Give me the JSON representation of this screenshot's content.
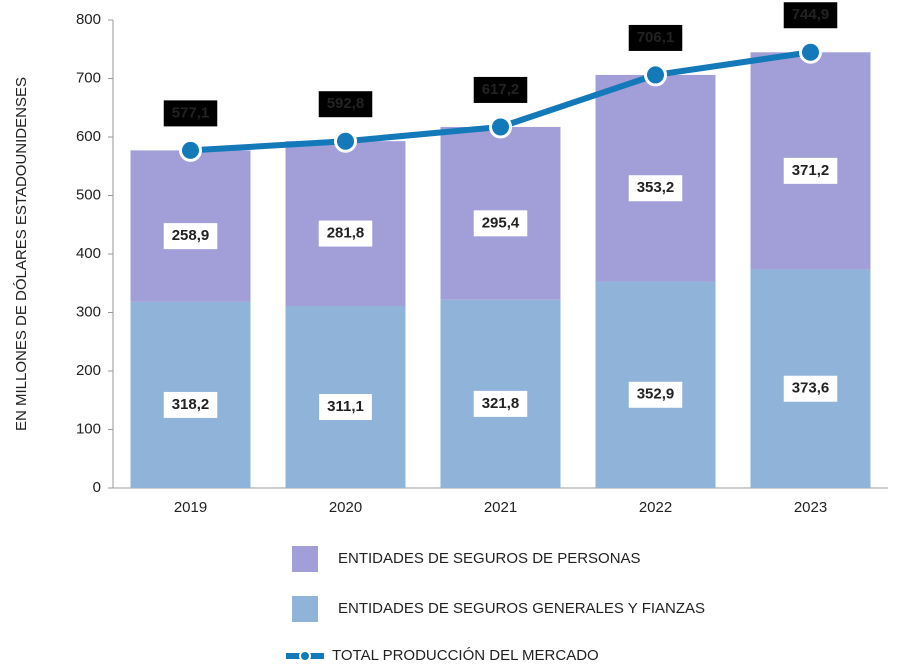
{
  "chart_data": {
    "type": "bar",
    "stacked": true,
    "y_label": "EN MILLONES DE DÓLARES ESTADOUNIDENSES",
    "categories": [
      "2019",
      "2020",
      "2021",
      "2022",
      "2023"
    ],
    "series": [
      {
        "name": "ENTIDADES DE SEGUROS GENERALES Y FIANZAS",
        "type": "bar",
        "color": "#8fb3d9",
        "values": [
          318.2,
          311.1,
          321.8,
          352.9,
          373.6
        ],
        "value_labels": [
          "318,2",
          "311,1",
          "321,8",
          "352,9",
          "373,6"
        ]
      },
      {
        "name": "ENTIDADES DE SEGUROS DE PERSONAS",
        "type": "bar",
        "color": "#a29fd8",
        "values": [
          258.9,
          281.8,
          295.4,
          353.2,
          371.2
        ],
        "value_labels": [
          "258,9",
          "281,8",
          "295,4",
          "353,2",
          "371,2"
        ]
      },
      {
        "name": "TOTAL PRODUCCIÓN DEL MERCADO",
        "type": "line",
        "color": "#1479b8",
        "values": [
          577.1,
          592.8,
          617.2,
          706.1,
          744.9
        ],
        "value_labels": [
          "577,1",
          "592,8",
          "617,2",
          "706,1",
          "744,9"
        ]
      }
    ],
    "ylim": [
      0,
      800
    ],
    "yticks": [
      0,
      100,
      200,
      300,
      400,
      500,
      600,
      700,
      800
    ],
    "grid": false
  }
}
